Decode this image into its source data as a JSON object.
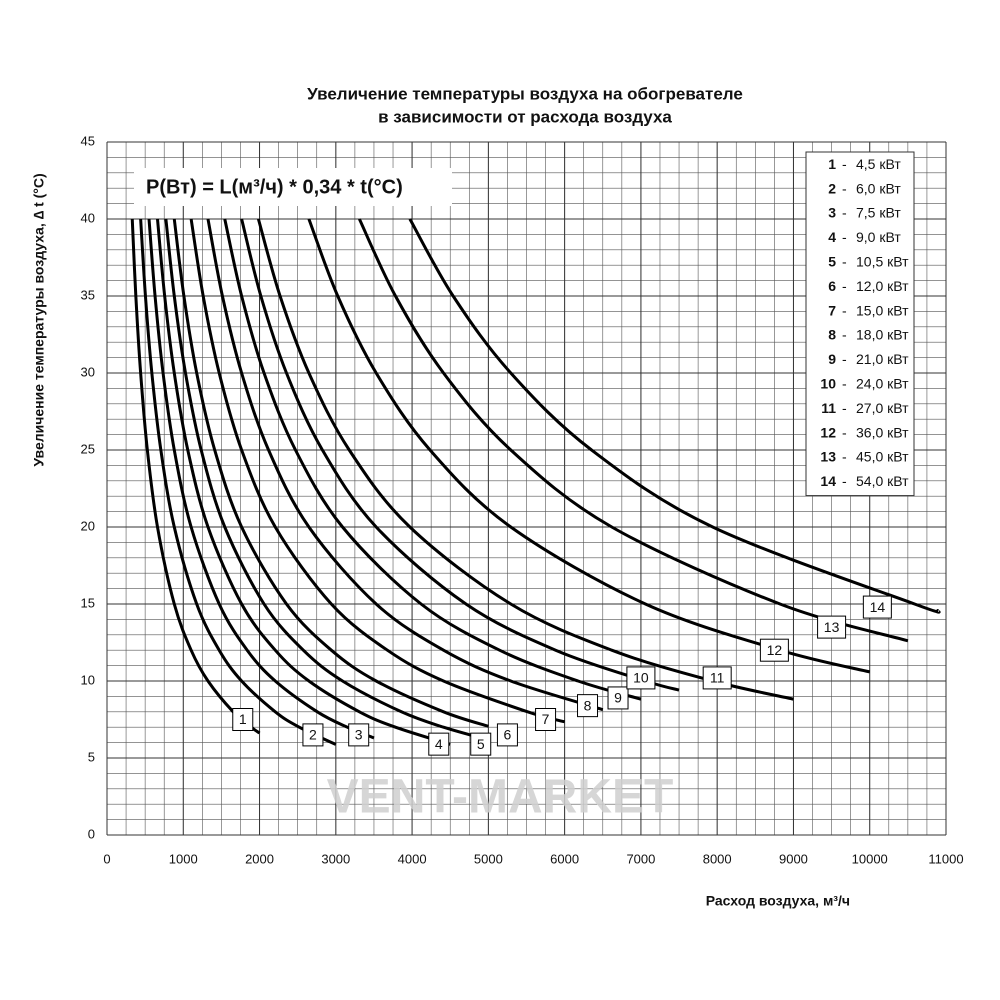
{
  "chart_data": {
    "type": "line",
    "title": "Увеличение температуры воздуха на обогревателе",
    "subtitle": "в зависимости от расхода воздуха",
    "x_label": "Расход воздуха,  м³/ч",
    "y_label": "Увеличение температуры воздуха,  ∆ t (°C)",
    "annotation": "P(Вт) = L(м³/ч) * 0,34 * t(°C)",
    "watermark": "VENT-MARKET",
    "legend_separator": "-",
    "legend": "top-right",
    "grid": true,
    "xminor": 250,
    "yminor": 1,
    "xlim": [
      0,
      11000
    ],
    "ylim": [
      0,
      45
    ],
    "xticks": [
      0,
      1000,
      2000,
      3000,
      4000,
      5000,
      6000,
      7000,
      8000,
      9000,
      10000,
      11000
    ],
    "yticks": [
      0,
      5,
      10,
      15,
      20,
      25,
      30,
      35,
      40,
      45
    ],
    "series": [
      {
        "label": "1",
        "name": "4,5 кВт",
        "color": "#000000",
        "x": [
          331,
          378,
          441,
          529,
          662,
          882,
          1103,
          1324,
          1654,
          1891,
          2000
        ],
        "values": [
          40,
          35,
          30,
          25,
          20,
          15,
          12,
          10,
          8,
          7,
          6.62
        ]
      },
      {
        "label": "2",
        "name": "6,0 кВт",
        "color": "#000000",
        "x": [
          441,
          504,
          588,
          706,
          882,
          1176,
          1471,
          1765,
          2206,
          2521,
          3000
        ],
        "values": [
          40,
          35,
          30,
          25,
          20,
          15,
          12,
          10,
          8,
          7,
          5.88
        ]
      },
      {
        "label": "3",
        "name": "7,5 кВт",
        "color": "#000000",
        "x": [
          551,
          630,
          735,
          882,
          1103,
          1471,
          1838,
          2206,
          2757,
          3151,
          3500
        ],
        "values": [
          40,
          35,
          30,
          25,
          20,
          15,
          12,
          10,
          8,
          7,
          6.3
        ]
      },
      {
        "label": "4",
        "name": "9,0 кВт",
        "color": "#000000",
        "x": [
          662,
          756,
          882,
          1059,
          1324,
          1765,
          2206,
          2647,
          3309,
          3782,
          4500
        ],
        "values": [
          40,
          35,
          30,
          25,
          20,
          15,
          12,
          10,
          8,
          7,
          5.88
        ]
      },
      {
        "label": "5",
        "name": "10,5 кВт",
        "color": "#000000",
        "x": [
          772,
          882,
          1029,
          1235,
          1544,
          2059,
          2574,
          3088,
          3860,
          4412,
          5000
        ],
        "values": [
          40,
          35,
          30,
          25,
          20,
          15,
          12,
          10,
          8,
          7,
          6.18
        ]
      },
      {
        "label": "6",
        "name": "12,0 кВт",
        "color": "#000000",
        "x": [
          882,
          1008,
          1176,
          1412,
          1765,
          2353,
          2941,
          3529,
          4412,
          5000
        ],
        "values": [
          40,
          35,
          30,
          25,
          20,
          15,
          12,
          10,
          8,
          7.06
        ]
      },
      {
        "label": "7",
        "name": "15,0 кВт",
        "color": "#000000",
        "x": [
          1103,
          1261,
          1471,
          1765,
          2206,
          2941,
          3676,
          4412,
          5515,
          6000
        ],
        "values": [
          40,
          35,
          30,
          25,
          20,
          15,
          12,
          10,
          8,
          7.35
        ]
      },
      {
        "label": "8",
        "name": "18,0 кВт",
        "color": "#000000",
        "x": [
          1324,
          1513,
          1765,
          2118,
          2647,
          3529,
          4412,
          5294,
          6500
        ],
        "values": [
          40,
          35,
          30,
          25,
          20,
          15,
          12,
          10,
          8.14
        ]
      },
      {
        "label": "9",
        "name": "21,0 кВт",
        "color": "#000000",
        "x": [
          1544,
          1765,
          2059,
          2471,
          3088,
          4118,
          5147,
          6176,
          7000
        ],
        "values": [
          40,
          35,
          30,
          25,
          20,
          15,
          12,
          10,
          8.82
        ]
      },
      {
        "label": "10",
        "name": "24,0 кВт",
        "color": "#000000",
        "x": [
          1765,
          2017,
          2353,
          2824,
          3529,
          4706,
          5882,
          7059,
          7500
        ],
        "values": [
          40,
          35,
          30,
          25,
          20,
          15,
          12,
          10,
          9.41
        ]
      },
      {
        "label": "11",
        "name": "27,0 кВт",
        "color": "#000000",
        "x": [
          1985,
          2269,
          2647,
          3176,
          3971,
          5294,
          6618,
          7941,
          9000
        ],
        "values": [
          40,
          35,
          30,
          25,
          20,
          15,
          12,
          10,
          8.82
        ]
      },
      {
        "label": "12",
        "name": "36,0 кВт",
        "color": "#000000",
        "x": [
          2647,
          3025,
          3529,
          4235,
          5294,
          7059,
          8824,
          10000
        ],
        "values": [
          40,
          35,
          30,
          25,
          20,
          15,
          12,
          10.59
        ]
      },
      {
        "label": "13",
        "name": "45,0 кВт",
        "color": "#000000",
        "x": [
          3309,
          3782,
          4412,
          5294,
          6618,
          8824,
          10500
        ],
        "values": [
          40,
          35,
          30,
          25,
          20,
          15,
          12.61
        ]
      },
      {
        "label": "14",
        "name": "54,0 кВт",
        "color": "#000000",
        "x": [
          3971,
          4538,
          5294,
          6353,
          7941,
          10588,
          10900
        ],
        "values": [
          40,
          35,
          30,
          25,
          20,
          15,
          14.57
        ]
      }
    ]
  }
}
